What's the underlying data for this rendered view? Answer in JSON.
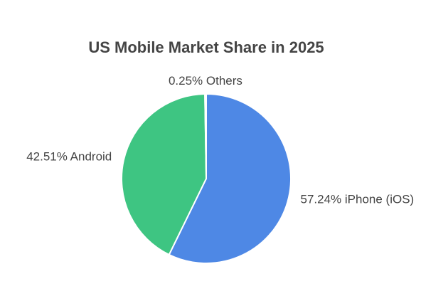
{
  "chart_data": {
    "type": "pie",
    "title": "US Mobile Market Share in 2025",
    "categories": [
      "iPhone (iOS)",
      "Android",
      "Others"
    ],
    "values": [
      57.24,
      42.51,
      0.25
    ],
    "value_labels": [
      "57.24%",
      "42.51%",
      "0.25%"
    ],
    "colors": [
      "#4e88e5",
      "#3ec582",
      "#c9c9c9"
    ]
  }
}
